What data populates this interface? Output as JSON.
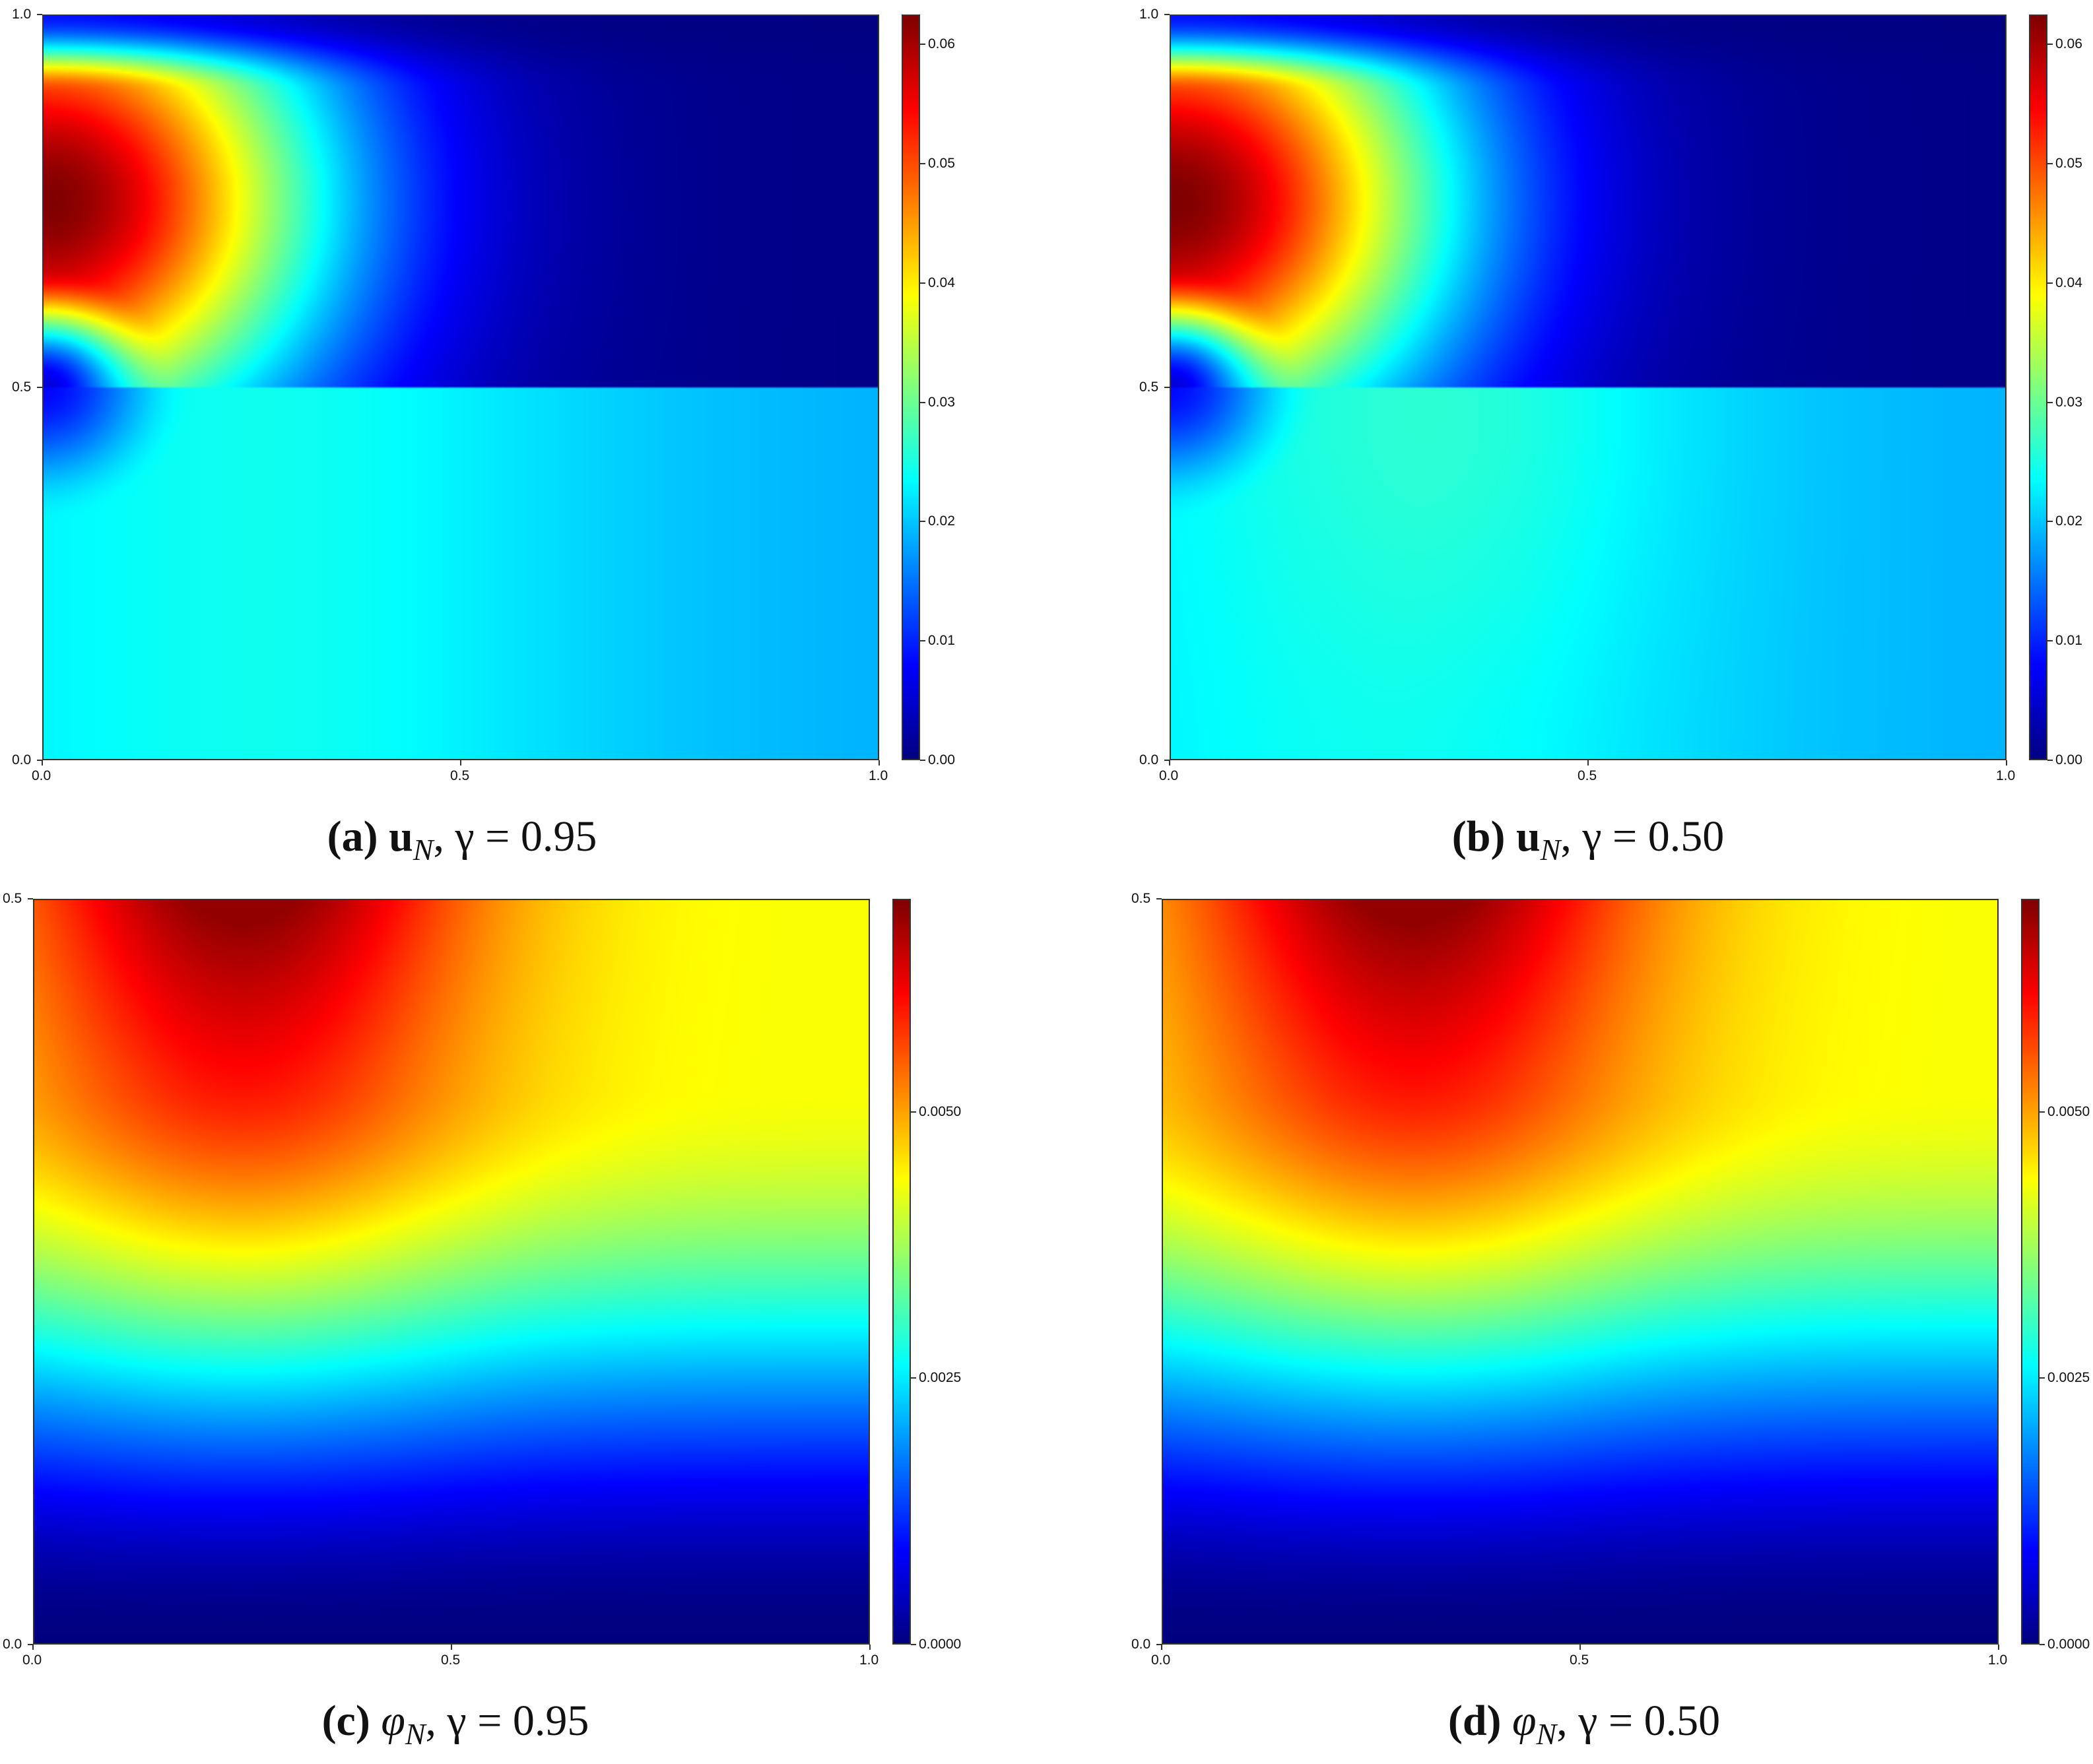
{
  "chart_data": [
    {
      "type": "heatmap",
      "panel": "a",
      "caption": {
        "letter": "(a)",
        "symbol": "u",
        "sub": "N",
        "gamma_text": ", γ = 0.95"
      },
      "field": "u",
      "gamma": 0.95,
      "xlim": [
        0,
        1
      ],
      "ylim": [
        0,
        1
      ],
      "x_ticks": [
        "0.0",
        "0.5",
        "1.0"
      ],
      "y_ticks": [
        "0.0",
        "0.5",
        "1.0"
      ],
      "colorbar": {
        "range": [
          0,
          0.0625
        ],
        "ticks": [
          "0.00",
          "0.01",
          "0.02",
          "0.03",
          "0.04",
          "0.05",
          "0.06"
        ]
      },
      "colormap": "jet",
      "interface_y": 0.5,
      "max_location": [
        0.0,
        0.75
      ],
      "max_value": 0.062
    },
    {
      "type": "heatmap",
      "panel": "b",
      "caption": {
        "letter": "(b)",
        "symbol": "u",
        "sub": "N",
        "gamma_text": ", γ = 0.50"
      },
      "field": "u",
      "gamma": 0.5,
      "xlim": [
        0,
        1
      ],
      "ylim": [
        0,
        1
      ],
      "x_ticks": [
        "0.0",
        "0.5",
        "1.0"
      ],
      "y_ticks": [
        "0.0",
        "0.5",
        "1.0"
      ],
      "colorbar": {
        "range": [
          0,
          0.0625
        ],
        "ticks": [
          "0.00",
          "0.01",
          "0.02",
          "0.03",
          "0.04",
          "0.05",
          "0.06"
        ]
      },
      "colormap": "jet",
      "interface_y": 0.5,
      "max_location": [
        0.0,
        0.75
      ],
      "max_value": 0.062
    },
    {
      "type": "heatmap",
      "panel": "c",
      "caption": {
        "letter": "(c)",
        "symbol": "φ",
        "sub": "N",
        "gamma_text": ", γ = 0.95"
      },
      "field": "phi",
      "gamma": 0.95,
      "xlim": [
        0,
        1
      ],
      "ylim": [
        0,
        0.5
      ],
      "x_ticks": [
        "0.0",
        "0.5",
        "1.0"
      ],
      "y_ticks": [
        "0.0",
        "0.5"
      ],
      "colorbar": {
        "range": [
          0,
          0.007
        ],
        "ticks": [
          "0.0000",
          "0.0025",
          "0.0050"
        ]
      },
      "colormap": "jet",
      "max_location": [
        0.25,
        0.5
      ],
      "max_value": 0.007
    },
    {
      "type": "heatmap",
      "panel": "d",
      "caption": {
        "letter": "(d)",
        "symbol": "φ",
        "sub": "N",
        "gamma_text": ", γ = 0.50"
      },
      "field": "phi",
      "gamma": 0.5,
      "xlim": [
        0,
        1
      ],
      "ylim": [
        0,
        0.5
      ],
      "x_ticks": [
        "0.0",
        "0.5",
        "1.0"
      ],
      "y_ticks": [
        "0.0",
        "0.5"
      ],
      "colorbar": {
        "range": [
          0,
          0.007
        ],
        "ticks": [
          "0.0000",
          "0.0025",
          "0.0050"
        ]
      },
      "colormap": "jet",
      "max_location": [
        0.3,
        0.5
      ],
      "max_value": 0.0065
    }
  ]
}
